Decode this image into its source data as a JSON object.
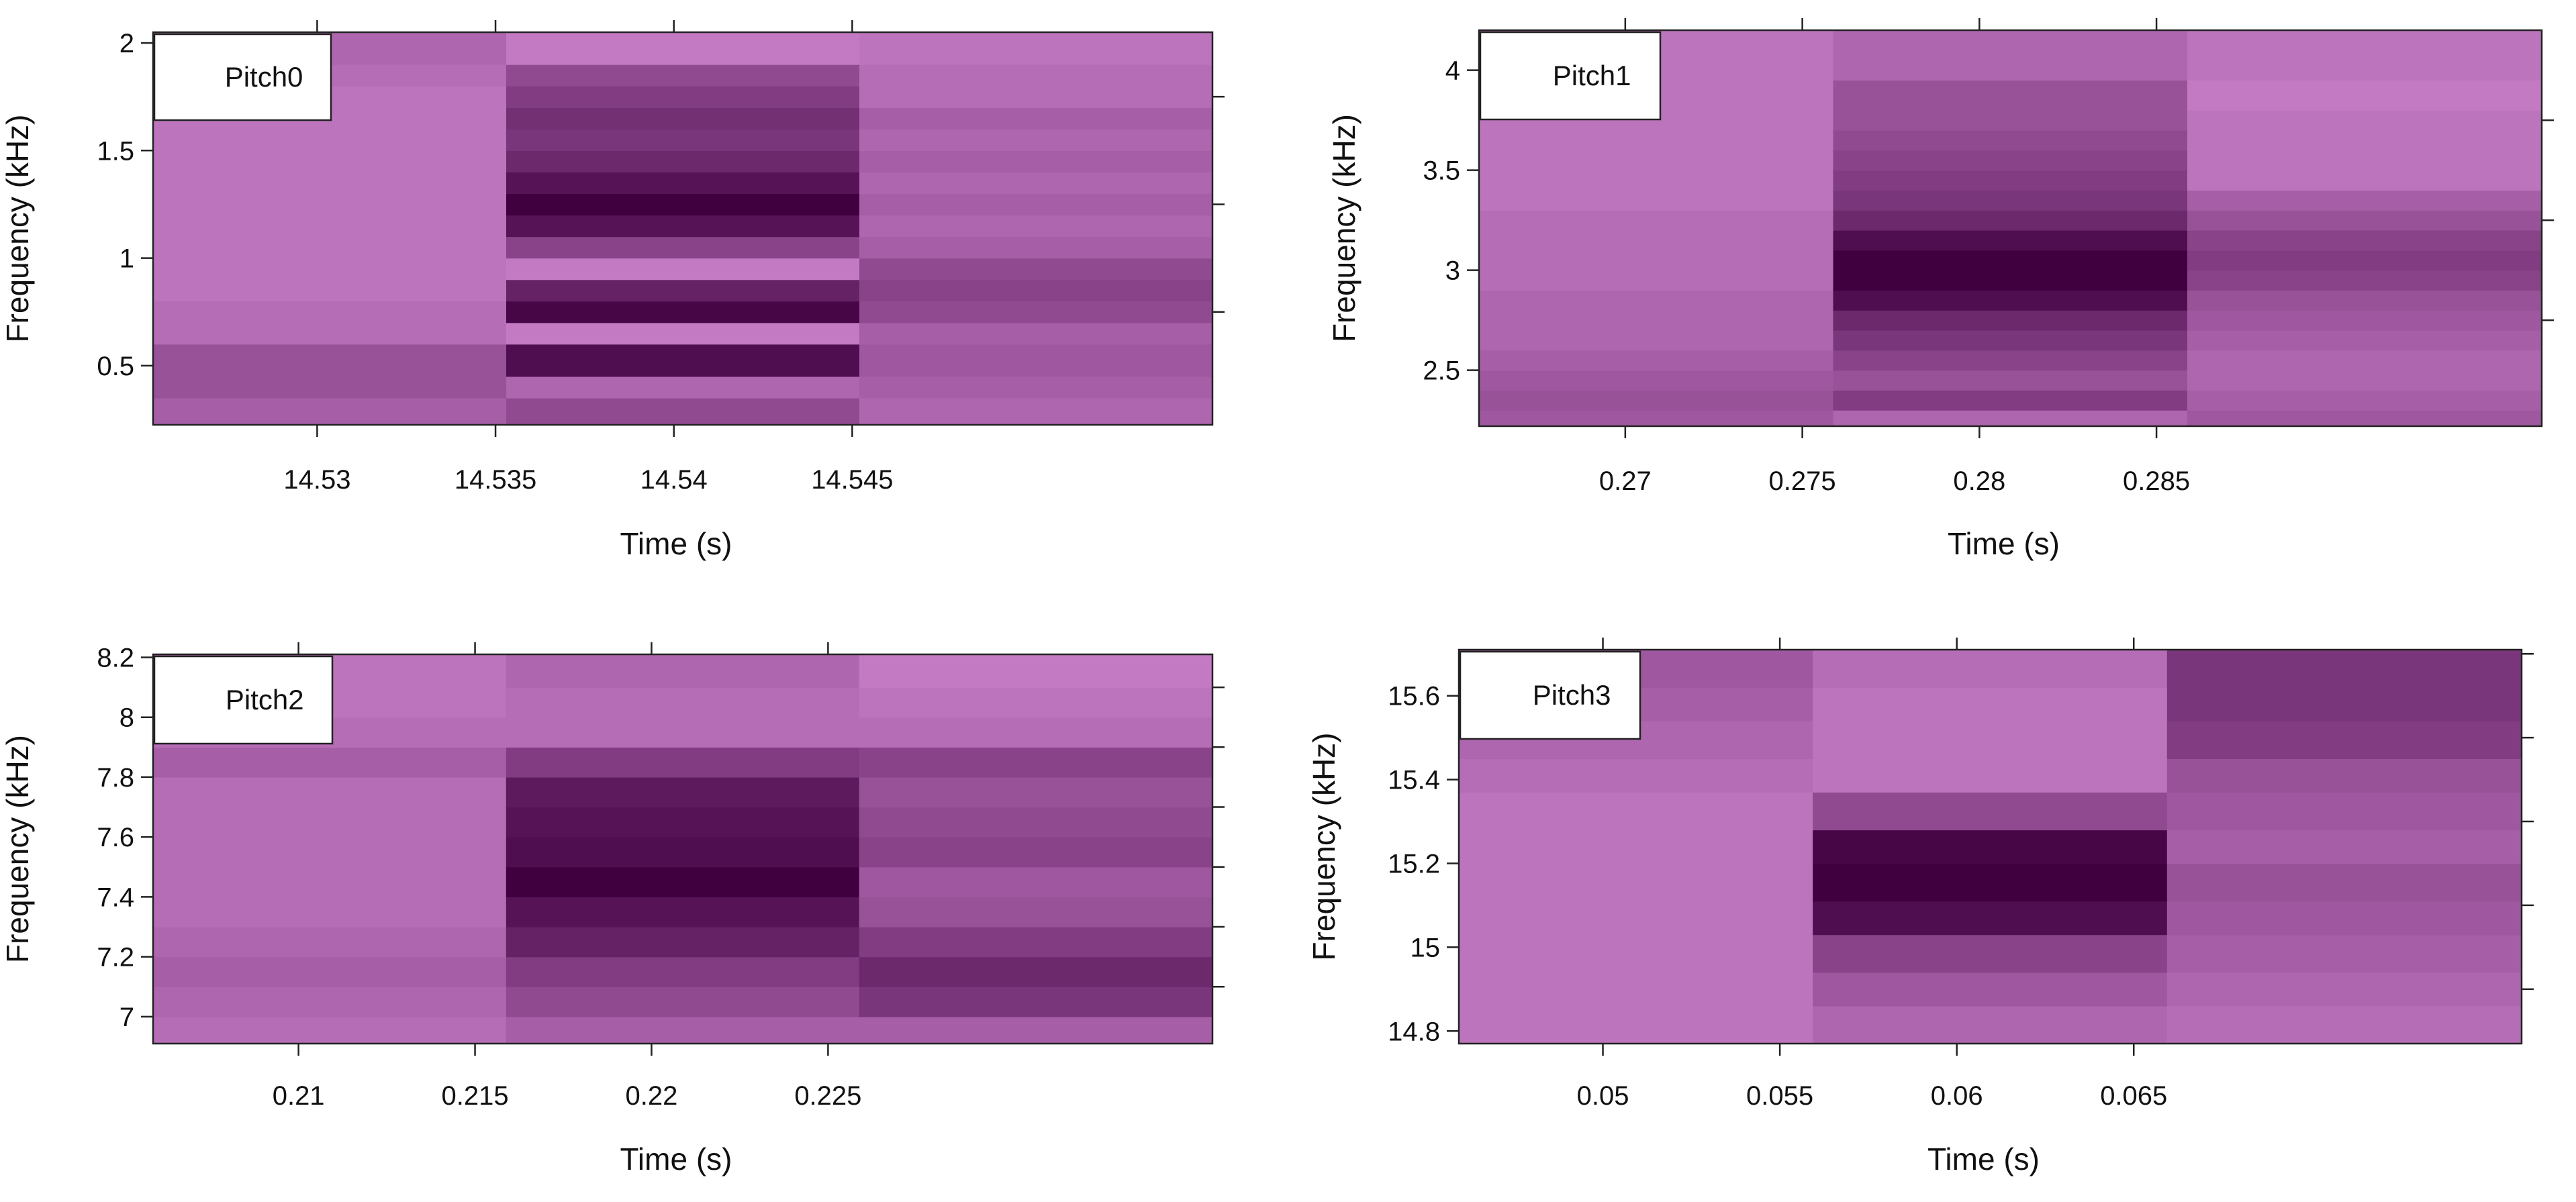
{
  "chart_data": [
    {
      "type": "heatmap",
      "title": "",
      "legend": "Pitch0",
      "xlabel": "Time (s)",
      "ylabel": "Frequency (kHz)",
      "xticks": [
        "14.53",
        "14.535",
        "14.54",
        "14.545"
      ],
      "xtick_values": [
        14.53,
        14.535,
        14.54,
        14.545
      ],
      "yticks": [
        "0.5",
        "1",
        "1.5",
        "2"
      ],
      "ytick_values": [
        0.5,
        1.0,
        1.5,
        2.0
      ],
      "xlim": [
        14.5254,
        14.5551
      ],
      "ylim": [
        0.225,
        2.05
      ],
      "columns": [
        {
          "t_start": 14.5254,
          "t_end": 14.5353
        },
        {
          "t_start": 14.5353,
          "t_end": 14.5452
        },
        {
          "t_start": 14.5452,
          "t_end": 14.5551
        }
      ],
      "y_edges": [
        0.225,
        0.35,
        0.45,
        0.6,
        0.7,
        0.8,
        0.9,
        1.0,
        1.1,
        1.2,
        1.3,
        1.4,
        1.5,
        1.6,
        1.7,
        1.8,
        1.9,
        2.05
      ],
      "intensity": [
        [
          0.3,
          0.45,
          0.25
        ],
        [
          0.4,
          0.25,
          0.3
        ],
        [
          0.4,
          0.9,
          0.35
        ],
        [
          0.2,
          0.1,
          0.3
        ],
        [
          0.2,
          0.95,
          0.45
        ],
        [
          0.15,
          0.75,
          0.5
        ],
        [
          0.15,
          0.1,
          0.45
        ],
        [
          0.15,
          0.5,
          0.3
        ],
        [
          0.15,
          0.85,
          0.25
        ],
        [
          0.15,
          1.0,
          0.3
        ],
        [
          0.15,
          0.85,
          0.25
        ],
        [
          0.15,
          0.7,
          0.3
        ],
        [
          0.15,
          0.6,
          0.25
        ],
        [
          0.15,
          0.65,
          0.3
        ],
        [
          0.15,
          0.55,
          0.2
        ],
        [
          0.2,
          0.45,
          0.2
        ],
        [
          0.25,
          0.1,
          0.15
        ]
      ]
    },
    {
      "type": "heatmap",
      "title": "",
      "legend": "Pitch1",
      "xlabel": "Time (s)",
      "ylabel": "Frequency (kHz)",
      "xticks": [
        "0.27",
        "0.275",
        "0.28",
        "0.285"
      ],
      "xtick_values": [
        0.27,
        0.275,
        0.28,
        0.285
      ],
      "yticks": [
        "2.5",
        "3",
        "3.5",
        "4"
      ],
      "ytick_values": [
        2.5,
        3.0,
        3.5,
        4.0
      ],
      "xlim": [
        0.26587,
        0.29588
      ],
      "ylim": [
        2.22,
        4.2
      ],
      "columns": [
        {
          "t_start": 0.26587,
          "t_end": 0.27587
        },
        {
          "t_start": 0.27587,
          "t_end": 0.28587
        },
        {
          "t_start": 0.28587,
          "t_end": 0.29588
        }
      ],
      "y_edges": [
        2.22,
        2.3,
        2.4,
        2.5,
        2.6,
        2.7,
        2.8,
        2.9,
        3.0,
        3.1,
        3.2,
        3.3,
        3.4,
        3.5,
        3.6,
        3.7,
        3.8,
        3.95,
        4.2
      ],
      "intensity": [
        [
          0.35,
          0.25,
          0.35
        ],
        [
          0.4,
          0.55,
          0.3
        ],
        [
          0.35,
          0.4,
          0.25
        ],
        [
          0.3,
          0.5,
          0.25
        ],
        [
          0.25,
          0.6,
          0.3
        ],
        [
          0.25,
          0.7,
          0.35
        ],
        [
          0.25,
          0.9,
          0.4
        ],
        [
          0.2,
          1.0,
          0.5
        ],
        [
          0.2,
          1.0,
          0.55
        ],
        [
          0.2,
          0.9,
          0.5
        ],
        [
          0.2,
          0.7,
          0.4
        ],
        [
          0.15,
          0.6,
          0.3
        ],
        [
          0.15,
          0.55,
          0.15
        ],
        [
          0.15,
          0.5,
          0.15
        ],
        [
          0.15,
          0.45,
          0.15
        ],
        [
          0.15,
          0.4,
          0.15
        ],
        [
          0.15,
          0.4,
          0.1
        ],
        [
          0.15,
          0.25,
          0.15
        ]
      ]
    },
    {
      "type": "heatmap",
      "title": "",
      "legend": "Pitch2",
      "xlabel": "Time (s)",
      "ylabel": "Frequency (kHz)",
      "xticks": [
        "0.21",
        "0.215",
        "0.22",
        "0.225"
      ],
      "xtick_values": [
        0.21,
        0.215,
        0.22,
        0.225
      ],
      "yticks": [
        "7",
        "7.2",
        "7.4",
        "7.6",
        "7.8",
        "8",
        "8.2"
      ],
      "ytick_values": [
        7.0,
        7.2,
        7.4,
        7.6,
        7.8,
        8.0,
        8.2
      ],
      "xlim": [
        0.20588,
        0.23589
      ],
      "ylim": [
        6.91,
        8.21
      ],
      "columns": [
        {
          "t_start": 0.20588,
          "t_end": 0.21588
        },
        {
          "t_start": 0.21588,
          "t_end": 0.22588
        },
        {
          "t_start": 0.22588,
          "t_end": 0.23589
        }
      ],
      "y_edges": [
        6.91,
        7.0,
        7.1,
        7.2,
        7.3,
        7.4,
        7.5,
        7.6,
        7.7,
        7.8,
        7.9,
        8.0,
        8.1,
        8.21
      ],
      "intensity": [
        [
          0.2,
          0.3,
          0.3
        ],
        [
          0.25,
          0.45,
          0.6
        ],
        [
          0.3,
          0.55,
          0.7
        ],
        [
          0.25,
          0.75,
          0.55
        ],
        [
          0.2,
          0.85,
          0.4
        ],
        [
          0.2,
          1.0,
          0.35
        ],
        [
          0.2,
          0.9,
          0.5
        ],
        [
          0.2,
          0.85,
          0.45
        ],
        [
          0.2,
          0.8,
          0.4
        ],
        [
          0.3,
          0.55,
          0.5
        ],
        [
          0.2,
          0.2,
          0.2
        ],
        [
          0.15,
          0.2,
          0.15
        ],
        [
          0.15,
          0.25,
          0.1
        ]
      ]
    },
    {
      "type": "heatmap",
      "title": "",
      "legend": "Pitch3",
      "xlabel": "Time (s)",
      "ylabel": "Frequency (kHz)",
      "xticks": [
        "0.05",
        "0.055",
        "0.06",
        "0.065"
      ],
      "xtick_values": [
        0.05,
        0.055,
        0.06,
        0.065
      ],
      "yticks": [
        "14.8",
        "15",
        "15.2",
        "15.4",
        "15.6"
      ],
      "ytick_values": [
        14.8,
        15.0,
        15.2,
        15.4,
        15.6
      ],
      "xlim": [
        0.04593,
        0.07596
      ],
      "ylim": [
        14.77,
        15.71
      ],
      "columns": [
        {
          "t_start": 0.04593,
          "t_end": 0.05593
        },
        {
          "t_start": 0.05593,
          "t_end": 0.06594
        },
        {
          "t_start": 0.06594,
          "t_end": 0.07596
        }
      ],
      "y_edges": [
        14.77,
        14.86,
        14.94,
        15.03,
        15.11,
        15.2,
        15.28,
        15.37,
        15.45,
        15.54,
        15.62,
        15.71
      ],
      "intensity": [
        [
          0.15,
          0.25,
          0.2
        ],
        [
          0.15,
          0.35,
          0.25
        ],
        [
          0.15,
          0.5,
          0.3
        ],
        [
          0.15,
          0.9,
          0.35
        ],
        [
          0.15,
          1.0,
          0.4
        ],
        [
          0.15,
          0.95,
          0.3
        ],
        [
          0.15,
          0.45,
          0.35
        ],
        [
          0.2,
          0.15,
          0.4
        ],
        [
          0.25,
          0.15,
          0.55
        ],
        [
          0.3,
          0.15,
          0.6
        ],
        [
          0.35,
          0.2,
          0.6
        ]
      ]
    }
  ]
}
